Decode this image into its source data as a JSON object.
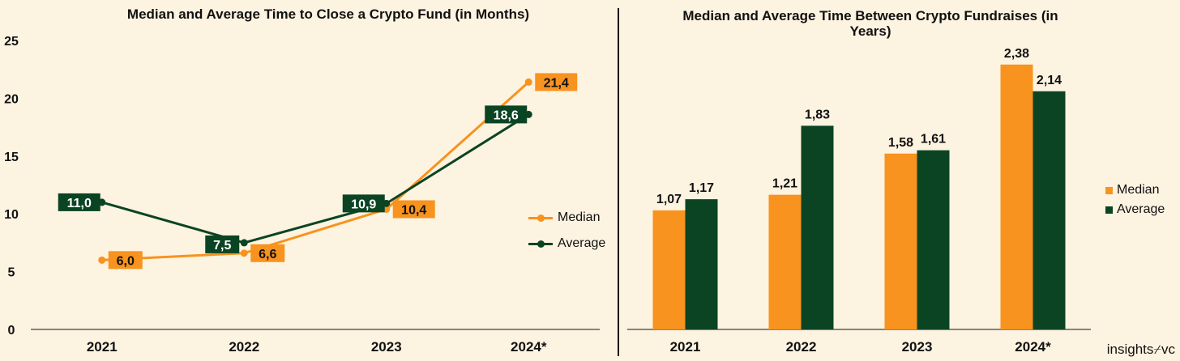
{
  "left_chart": {
    "title": "Median and Average Time to Close a Crypto Fund (in Months)",
    "legend": {
      "position": "right"
    }
  },
  "right_chart": {
    "title": "Median and Average Time Between Crypto Fundraises (in Years)",
    "legend": {
      "position": "right"
    }
  },
  "brand": {
    "left": "insights",
    "glyph": "⌿",
    "right": "vc"
  },
  "chart_data": [
    {
      "type": "line",
      "title": "Median and Average Time to Close a Crypto Fund (in Months)",
      "categories": [
        "2021",
        "2022",
        "2023",
        "2024*"
      ],
      "ylim": [
        0,
        25
      ],
      "yticks": [
        0,
        5,
        10,
        15,
        20,
        25
      ],
      "grid": false,
      "legend_position": "right",
      "series": [
        {
          "name": "Median",
          "color": "#f7931e",
          "values": [
            6.0,
            6.6,
            10.4,
            21.4
          ],
          "labels": [
            "6,0",
            "6,6",
            "10,4",
            "21,4"
          ]
        },
        {
          "name": "Average",
          "color": "#0b4423",
          "values": [
            11.0,
            7.5,
            10.9,
            18.6
          ],
          "labels": [
            "11,0",
            "7,5",
            "10,9",
            "18,6"
          ]
        }
      ]
    },
    {
      "type": "bar",
      "title": "Median and Average Time Between Crypto Fundraises (in Years)",
      "categories": [
        "2021",
        "2022",
        "2023",
        "2024*"
      ],
      "ylim": [
        0,
        2.5
      ],
      "grid": false,
      "legend_position": "right",
      "series": [
        {
          "name": "Median",
          "color": "#f7931e",
          "values": [
            1.07,
            1.21,
            1.58,
            2.38
          ],
          "labels": [
            "1,07",
            "1,21",
            "1,58",
            "2,38"
          ]
        },
        {
          "name": "Average",
          "color": "#0b4423",
          "values": [
            1.17,
            1.83,
            1.61,
            2.14
          ],
          "labels": [
            "1,17",
            "1,83",
            "1,61",
            "2,14"
          ]
        }
      ]
    }
  ]
}
